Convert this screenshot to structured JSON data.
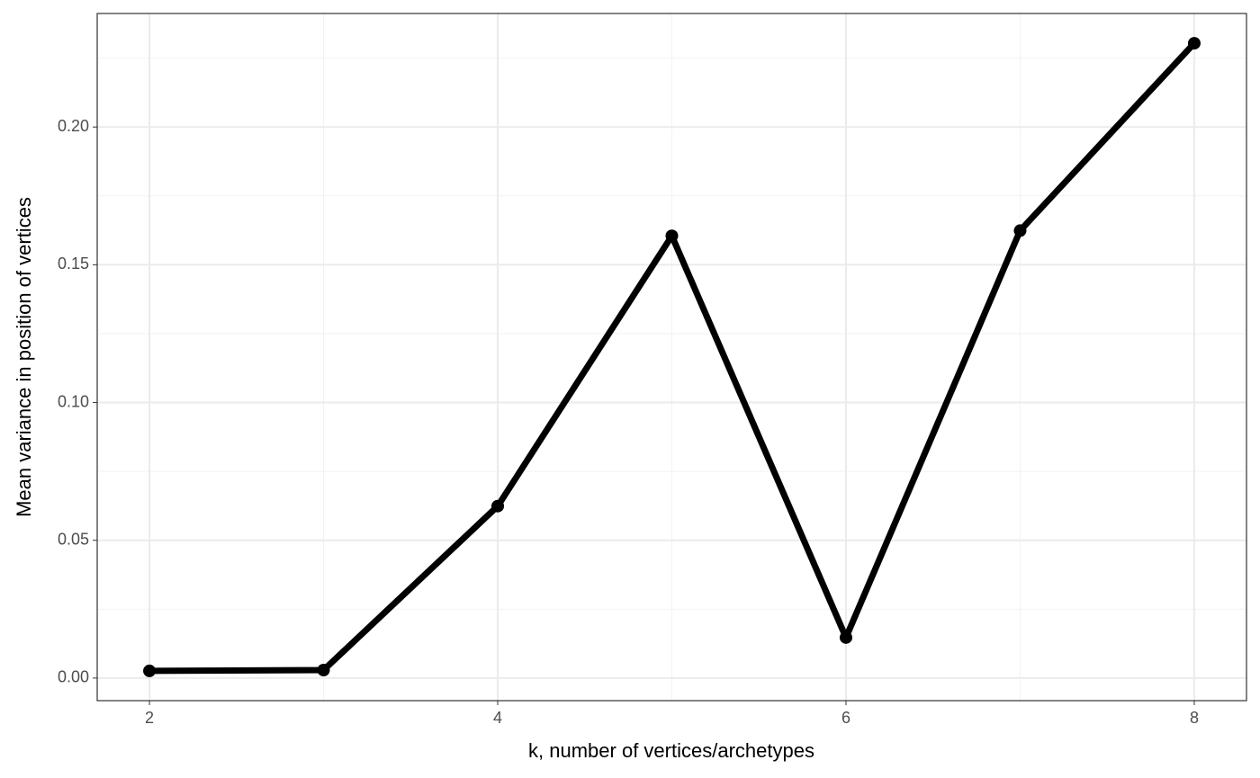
{
  "chart_data": {
    "type": "line",
    "x_label": "k, number of vertices/archetypes",
    "y_label": "Mean variance in position of vertices",
    "x": [
      2,
      3,
      4,
      5,
      6,
      7,
      8
    ],
    "series": [
      {
        "color": "#000000",
        "values": [
          0.0026,
          0.0029,
          0.0624,
          0.1605,
          0.0147,
          0.1624,
          0.2304
        ]
      }
    ],
    "xlim": [
      1.7,
      8.3
    ],
    "xticks": [
      2,
      4,
      6,
      8
    ],
    "ylim": [
      -0.0082,
      0.2412
    ],
    "yticks": [
      {
        "value": 0,
        "label": "0.00"
      },
      {
        "value": 0.05,
        "label": "0.05"
      },
      {
        "value": 0.1,
        "label": "0.10"
      },
      {
        "value": 0.15,
        "label": "0.15"
      },
      {
        "value": 0.2,
        "label": "0.20"
      }
    ],
    "grid": true,
    "minor_grid": true,
    "markers": true
  }
}
